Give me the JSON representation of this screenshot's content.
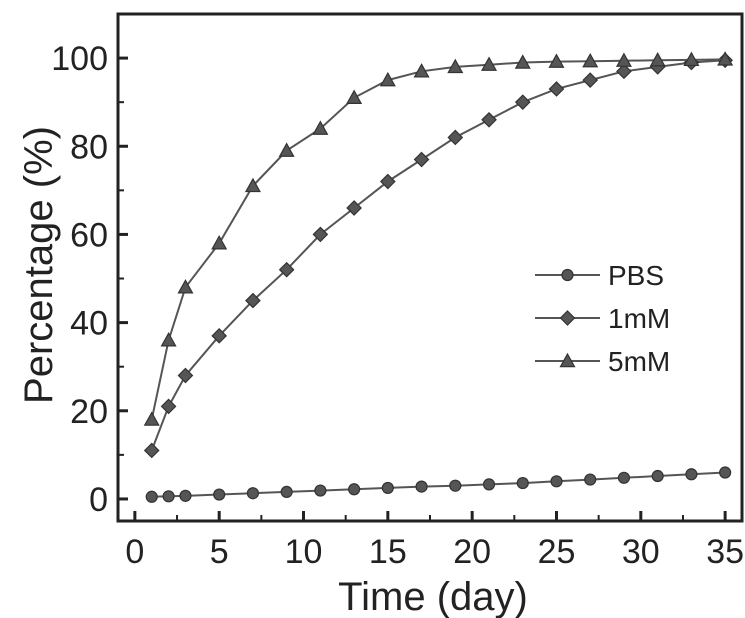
{
  "chart_data": {
    "type": "line",
    "xlabel": "Time (day)",
    "ylabel": "Percentage (%)",
    "xlim": [
      -1,
      36
    ],
    "ylim": [
      -5,
      110
    ],
    "xticks": [
      0,
      5,
      10,
      15,
      20,
      25,
      30,
      35
    ],
    "yticks": [
      0,
      20,
      40,
      60,
      80,
      100
    ],
    "grid": false,
    "legend_position": "right-middle",
    "series": [
      {
        "name": "PBS",
        "marker": "circle",
        "color": "#555555",
        "x": [
          1,
          2,
          3,
          5,
          7,
          9,
          11,
          13,
          15,
          17,
          19,
          21,
          23,
          25,
          27,
          29,
          31,
          33,
          35
        ],
        "y": [
          0.5,
          0.6,
          0.7,
          1.0,
          1.3,
          1.6,
          1.9,
          2.2,
          2.5,
          2.8,
          3.0,
          3.3,
          3.6,
          4.0,
          4.4,
          4.8,
          5.2,
          5.6,
          6.0
        ]
      },
      {
        "name": "1mM",
        "marker": "diamond",
        "color": "#555555",
        "x": [
          1,
          2,
          3,
          5,
          7,
          9,
          11,
          13,
          15,
          17,
          19,
          21,
          23,
          25,
          27,
          29,
          31,
          33,
          35
        ],
        "y": [
          11,
          21,
          28,
          37,
          45,
          52,
          60,
          66,
          72,
          77,
          82,
          86,
          90,
          93,
          95,
          97,
          98,
          99,
          99.5
        ]
      },
      {
        "name": "5mM",
        "marker": "triangle",
        "color": "#555555",
        "x": [
          1,
          2,
          3,
          5,
          7,
          9,
          11,
          13,
          15,
          17,
          19,
          21,
          23,
          25,
          27,
          29,
          31,
          33,
          35
        ],
        "y": [
          18,
          36,
          48,
          58,
          71,
          79,
          84,
          91,
          95,
          97,
          98,
          98.5,
          99,
          99.2,
          99.3,
          99.4,
          99.5,
          99.6,
          99.7
        ]
      }
    ]
  }
}
